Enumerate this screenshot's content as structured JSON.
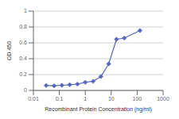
{
  "chart_data": {
    "type": "line",
    "x": [
      0.031,
      0.063,
      0.125,
      0.25,
      0.5,
      1.0,
      2.0,
      4.0,
      8.0,
      16.0,
      32.0,
      128.0
    ],
    "values": [
      0.063,
      0.058,
      0.065,
      0.072,
      0.08,
      0.103,
      0.115,
      0.175,
      0.335,
      0.645,
      0.66,
      0.755
    ],
    "xlabel": "Recombinant Protein Concentration (ng/ml)",
    "ylabel": "OD 450",
    "xlim": [
      0.01,
      1000
    ],
    "ylim": [
      0,
      1.0
    ],
    "xticks": [
      0.01,
      0.1,
      1,
      10,
      100,
      1000
    ],
    "yticks": [
      0,
      0.2,
      0.4,
      0.6,
      0.8,
      1
    ],
    "log": "x",
    "grid": "y",
    "color": "#5566bb",
    "marker": "diamond"
  }
}
